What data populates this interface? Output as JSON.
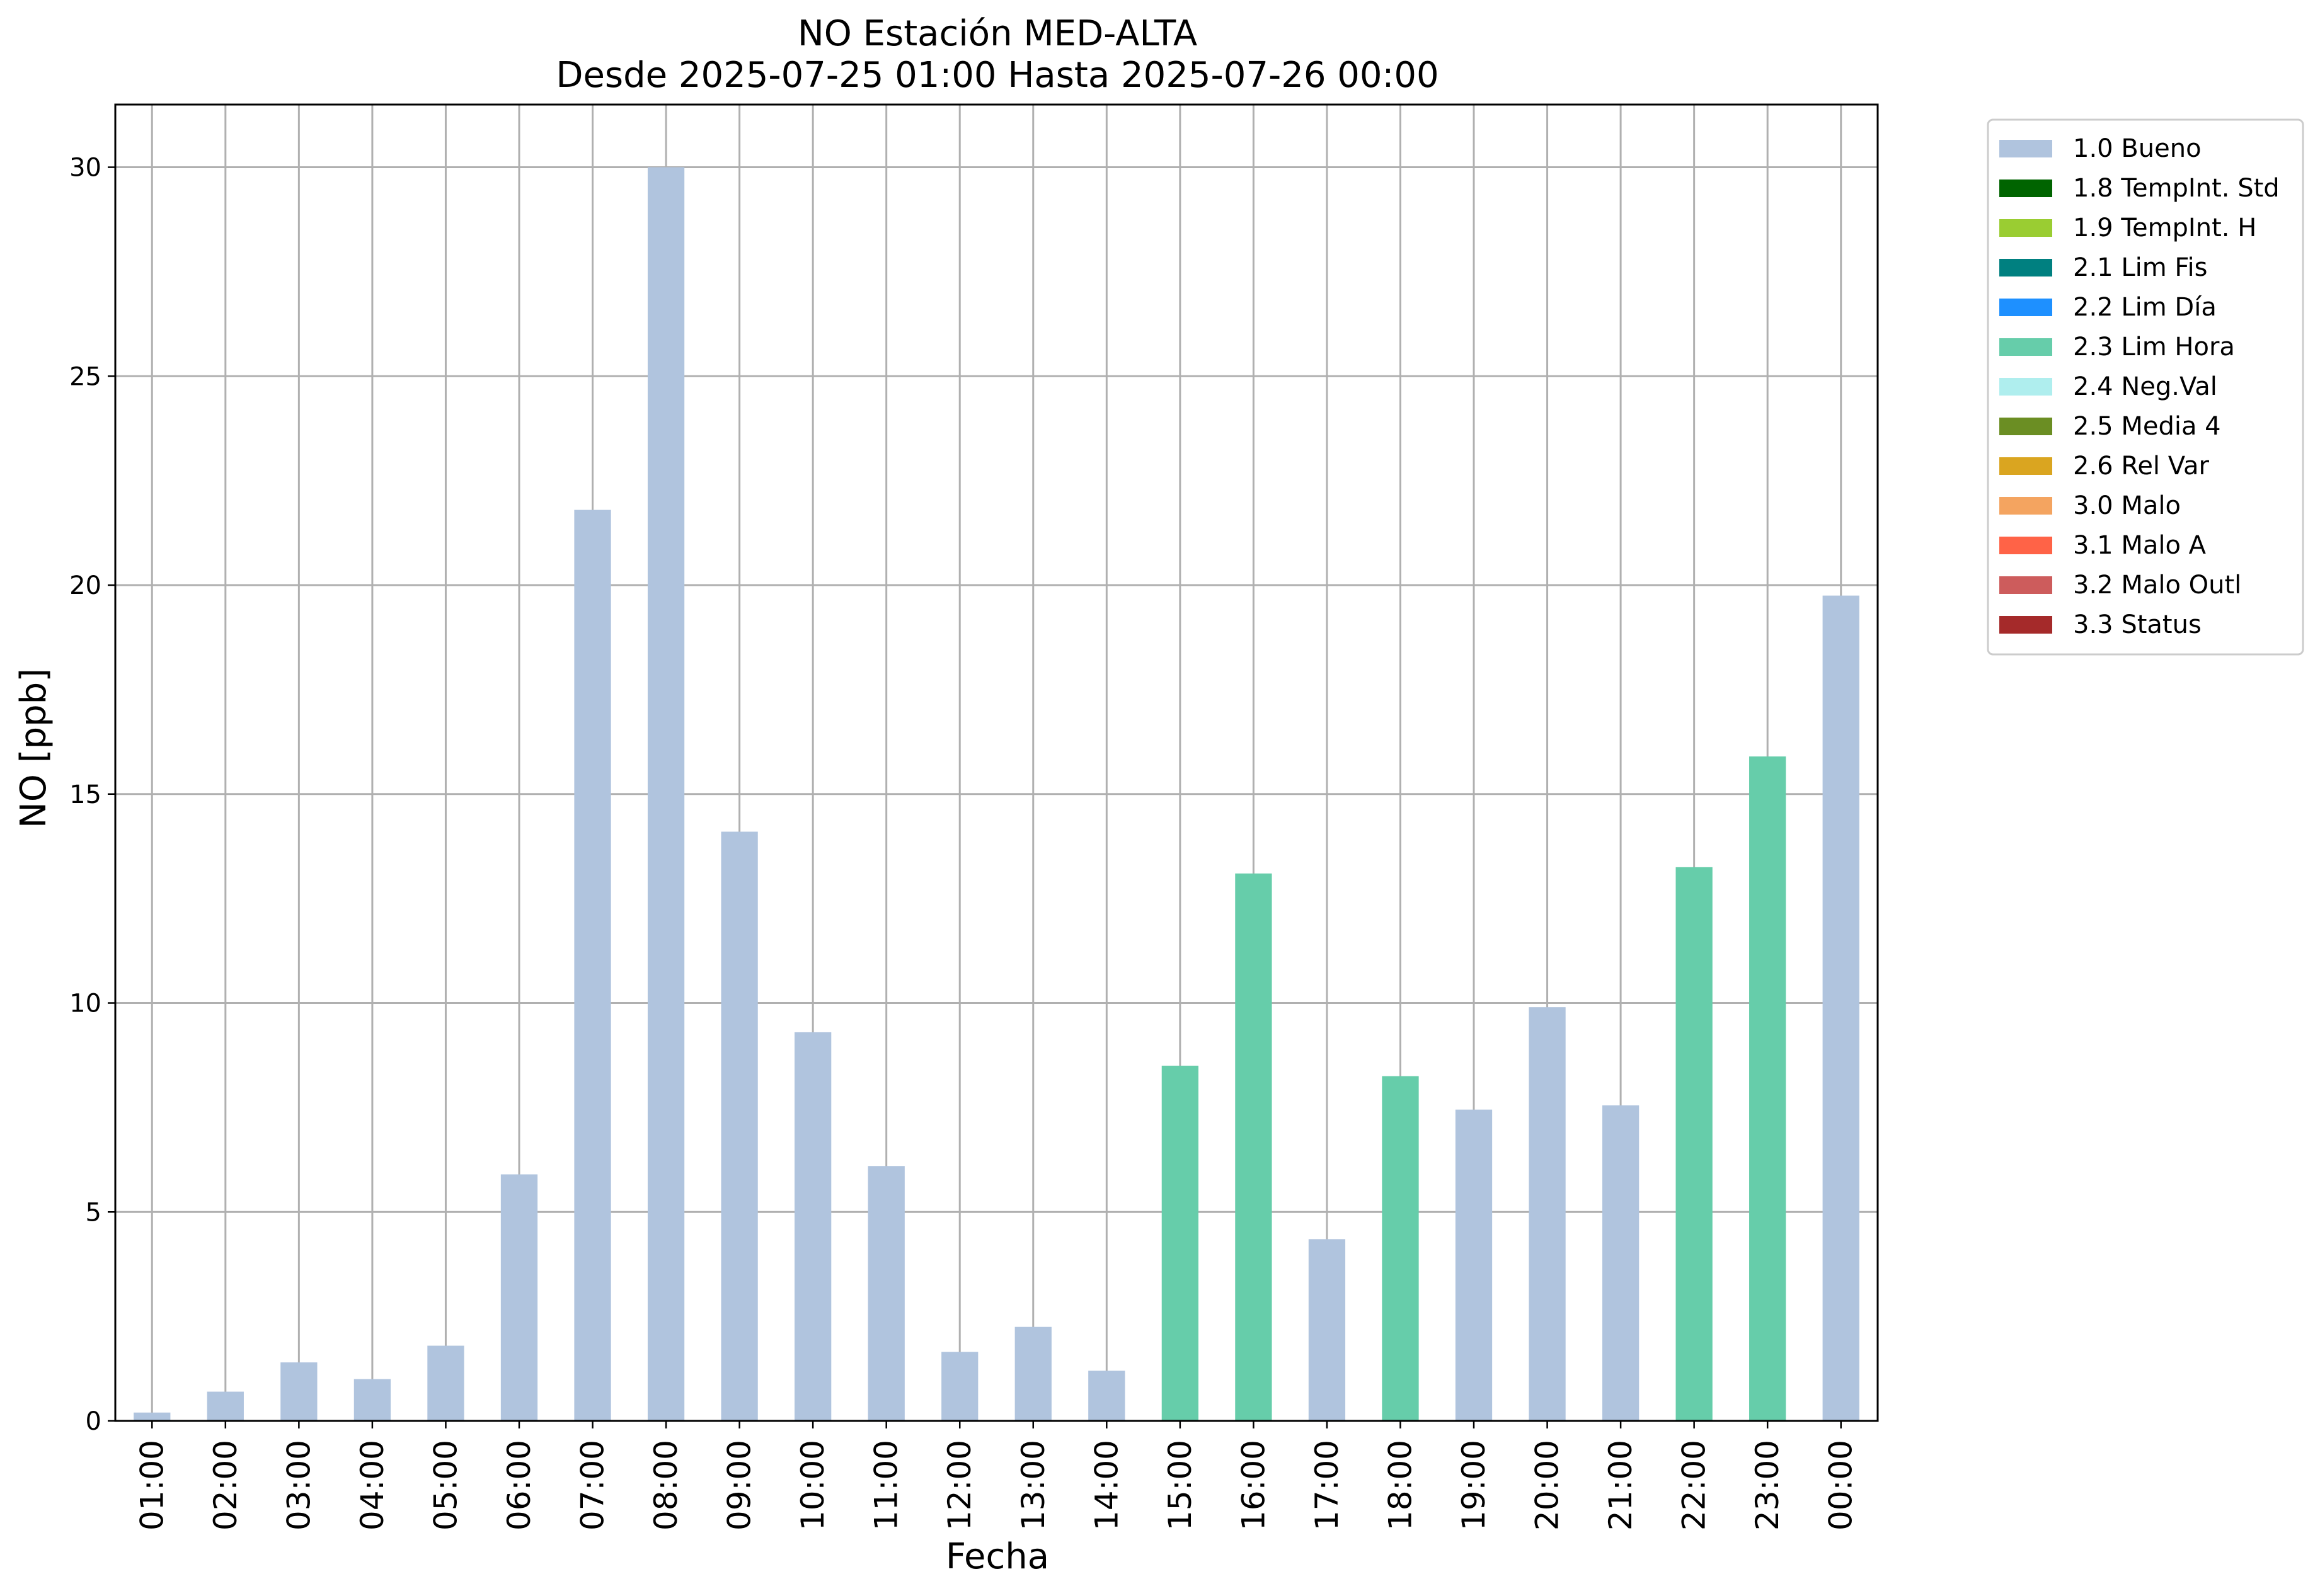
{
  "chart_data": {
    "type": "bar",
    "title": "NO Estación MED-ALTA",
    "subtitle": "Desde 2025-07-25 01:00 Hasta 2025-07-26 00:00",
    "xlabel": "Fecha",
    "ylabel": "NO [ppb]",
    "ylim": [
      0,
      31.5
    ],
    "yticks": [
      0,
      5,
      10,
      15,
      20,
      25,
      30
    ],
    "grid": true,
    "legend_position": "outside-top-right",
    "categories": [
      "01:00",
      "02:00",
      "03:00",
      "04:00",
      "05:00",
      "06:00",
      "07:00",
      "08:00",
      "09:00",
      "10:00",
      "11:00",
      "12:00",
      "13:00",
      "14:00",
      "15:00",
      "16:00",
      "17:00",
      "18:00",
      "19:00",
      "20:00",
      "21:00",
      "22:00",
      "23:00",
      "00:00"
    ],
    "values": [
      0.2,
      0.7,
      1.4,
      1.0,
      1.8,
      5.9,
      21.8,
      30.0,
      14.1,
      9.3,
      6.1,
      1.65,
      2.25,
      1.2,
      8.5,
      13.1,
      4.35,
      8.25,
      7.45,
      9.9,
      7.55,
      13.25,
      15.9,
      19.75
    ],
    "flags": [
      "1.0 Bueno",
      "1.0 Bueno",
      "1.0 Bueno",
      "1.0 Bueno",
      "1.0 Bueno",
      "1.0 Bueno",
      "1.0 Bueno",
      "1.0 Bueno",
      "1.0 Bueno",
      "1.0 Bueno",
      "1.0 Bueno",
      "1.0 Bueno",
      "1.0 Bueno",
      "1.0 Bueno",
      "2.3 Lim Hora",
      "2.3 Lim Hora",
      "1.0 Bueno",
      "2.3 Lim Hora",
      "1.0 Bueno",
      "1.0 Bueno",
      "1.0 Bueno",
      "2.3 Lim Hora",
      "2.3 Lim Hora",
      "1.0 Bueno"
    ],
    "legend": [
      {
        "label": "1.0 Bueno",
        "color": "#b0c4de"
      },
      {
        "label": "1.8 TempInt. Std",
        "color": "#006400"
      },
      {
        "label": "1.9 TempInt. H",
        "color": "#9acd32"
      },
      {
        "label": "2.1 Lim Fis",
        "color": "#008080"
      },
      {
        "label": "2.2 Lim Día",
        "color": "#1e90ff"
      },
      {
        "label": "2.3 Lim Hora",
        "color": "#66cdaa"
      },
      {
        "label": "2.4 Neg.Val",
        "color": "#afeeee"
      },
      {
        "label": "2.5 Media 4",
        "color": "#6b8e23"
      },
      {
        "label": "2.6 Rel Var",
        "color": "#daa520"
      },
      {
        "label": "3.0 Malo",
        "color": "#f4a460"
      },
      {
        "label": "3.1 Malo A",
        "color": "#ff6347"
      },
      {
        "label": "3.2 Malo Outl",
        "color": "#cd5c5c"
      },
      {
        "label": "3.3 Status",
        "color": "#a52a2a"
      }
    ]
  }
}
